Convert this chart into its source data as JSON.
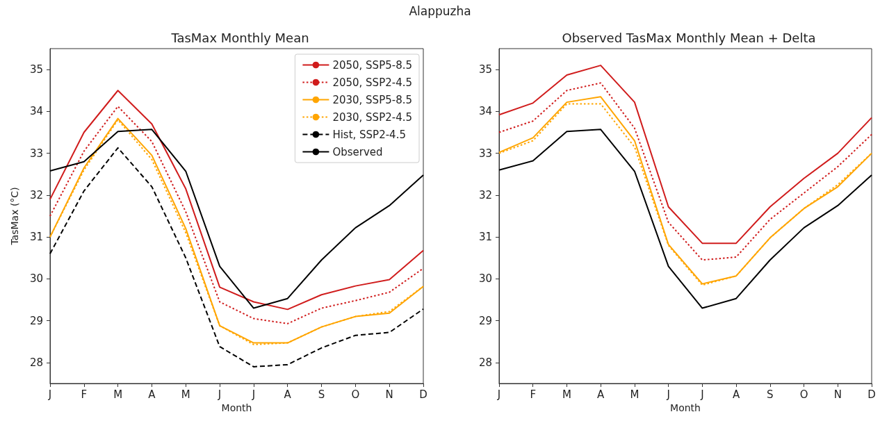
{
  "chart_data": [
    {
      "type": "line",
      "title": "TasMax Monthly Mean",
      "annotations": [
        "Alappuzha"
      ],
      "xlabel": "Month",
      "ylabel": "TasMax (°C)",
      "categories": [
        "J",
        "F",
        "M",
        "A",
        "M",
        "J",
        "J",
        "A",
        "S",
        "O",
        "N",
        "D"
      ],
      "ylim": [
        27.5,
        35.5
      ],
      "yticks": [
        28,
        29,
        30,
        31,
        32,
        33,
        34,
        35
      ],
      "grid": false,
      "legend": "top right",
      "series": [
        {
          "name": "2050, SSP5-8.5",
          "color": "#d01c1c",
          "line_style": "solid",
          "values": [
            31.9,
            33.5,
            34.5,
            33.7,
            32.15,
            29.8,
            29.45,
            29.27,
            29.62,
            29.83,
            29.98,
            30.68
          ]
        },
        {
          "name": "2050, SSP2-4.5",
          "color": "#d01c1c",
          "line_style": "dotted",
          "values": [
            31.5,
            33.05,
            34.12,
            33.28,
            31.6,
            29.45,
            29.05,
            28.93,
            29.3,
            29.48,
            29.68,
            30.25
          ]
        },
        {
          "name": "2030, SSP5-8.5",
          "color": "#ffa500",
          "line_style": "solid",
          "values": [
            31.0,
            32.65,
            33.83,
            32.95,
            31.2,
            28.88,
            28.47,
            28.47,
            28.85,
            29.1,
            29.18,
            29.82
          ]
        },
        {
          "name": "2030, SSP2-4.5",
          "color": "#ffa500",
          "line_style": "dotted",
          "values": [
            31.0,
            32.6,
            33.8,
            32.85,
            31.1,
            28.88,
            28.43,
            28.47,
            28.85,
            29.1,
            29.22,
            29.82
          ]
        },
        {
          "name": "Hist, SSP2-4.5",
          "color": "#000000",
          "line_style": "dashed",
          "values": [
            30.6,
            32.1,
            33.13,
            32.2,
            30.5,
            28.38,
            27.9,
            27.95,
            28.35,
            28.65,
            28.72,
            29.28
          ]
        },
        {
          "name": "Observed",
          "color": "#000000",
          "line_style": "solid",
          "values": [
            32.58,
            32.8,
            33.52,
            33.57,
            32.57,
            30.3,
            29.3,
            29.53,
            30.45,
            31.22,
            31.75,
            32.48
          ]
        }
      ]
    },
    {
      "type": "line",
      "title": "Observed TasMax Monthly Mean + Delta",
      "xlabel": "Month",
      "categories": [
        "J",
        "F",
        "M",
        "A",
        "M",
        "J",
        "J",
        "A",
        "S",
        "O",
        "N",
        "D"
      ],
      "ylim": [
        27.5,
        35.5
      ],
      "yticks": [
        28,
        29,
        30,
        31,
        32,
        33,
        34,
        35
      ],
      "grid": false,
      "series": [
        {
          "color": "#d01c1c",
          "line_style": "solid",
          "values": [
            33.92,
            34.2,
            34.87,
            35.1,
            34.22,
            31.72,
            30.85,
            30.85,
            31.72,
            32.4,
            33.0,
            33.85
          ]
        },
        {
          "color": "#d01c1c",
          "line_style": "dotted",
          "values": [
            33.5,
            33.77,
            34.5,
            34.68,
            33.6,
            31.35,
            30.45,
            30.52,
            31.42,
            32.05,
            32.68,
            33.45
          ]
        },
        {
          "color": "#ffa500",
          "line_style": "solid",
          "values": [
            33.02,
            33.37,
            34.22,
            34.35,
            33.3,
            30.82,
            29.88,
            30.07,
            30.98,
            31.68,
            32.2,
            33.0
          ]
        },
        {
          "color": "#ffa500",
          "line_style": "dotted",
          "values": [
            33.0,
            33.3,
            34.18,
            34.18,
            33.15,
            30.8,
            29.85,
            30.07,
            30.98,
            31.68,
            32.25,
            33.0
          ]
        },
        {
          "color": "#000000",
          "line_style": "solid",
          "values": [
            32.6,
            32.82,
            33.52,
            33.57,
            32.57,
            30.3,
            29.3,
            29.53,
            30.45,
            31.22,
            31.75,
            32.48
          ]
        }
      ]
    }
  ]
}
